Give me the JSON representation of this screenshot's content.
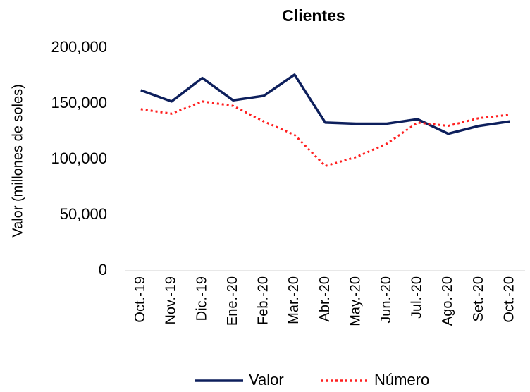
{
  "chart_data": {
    "type": "line",
    "title": "Clientes",
    "y_label": "Valor (millones de soles)",
    "categories": [
      "Oct.-19",
      "Nov.-19",
      "Dic.-19",
      "Ene.-20",
      "Feb.-20",
      "Mar.-20",
      "Abr.-20",
      "May.-20",
      "Jun.-20",
      "Jul.-20",
      "Ago.-20",
      "Set.-20",
      "Oct.-20"
    ],
    "series": [
      {
        "name": "Valor",
        "color": "#0d1f5c",
        "style": "solid",
        "values": [
          162000,
          152000,
          173000,
          153000,
          157000,
          176000,
          133000,
          132000,
          132000,
          136000,
          123000,
          130000,
          134000
        ]
      },
      {
        "name": "Número",
        "color": "#ff2020",
        "style": "dotted",
        "values": [
          145000,
          141000,
          152000,
          148000,
          134000,
          122000,
          94000,
          102000,
          114000,
          133000,
          130000,
          137000,
          140000
        ]
      }
    ],
    "ylim": [
      0,
      200000
    ],
    "yticks": [
      0,
      {
        "value": 50000,
        "label": "50,000"
      },
      {
        "value": 100000,
        "label": "100,000"
      },
      {
        "value": 150000,
        "label": "150,000"
      },
      {
        "value": 200000,
        "label": "200,000"
      }
    ],
    "grid": false,
    "legend": "bottom"
  }
}
